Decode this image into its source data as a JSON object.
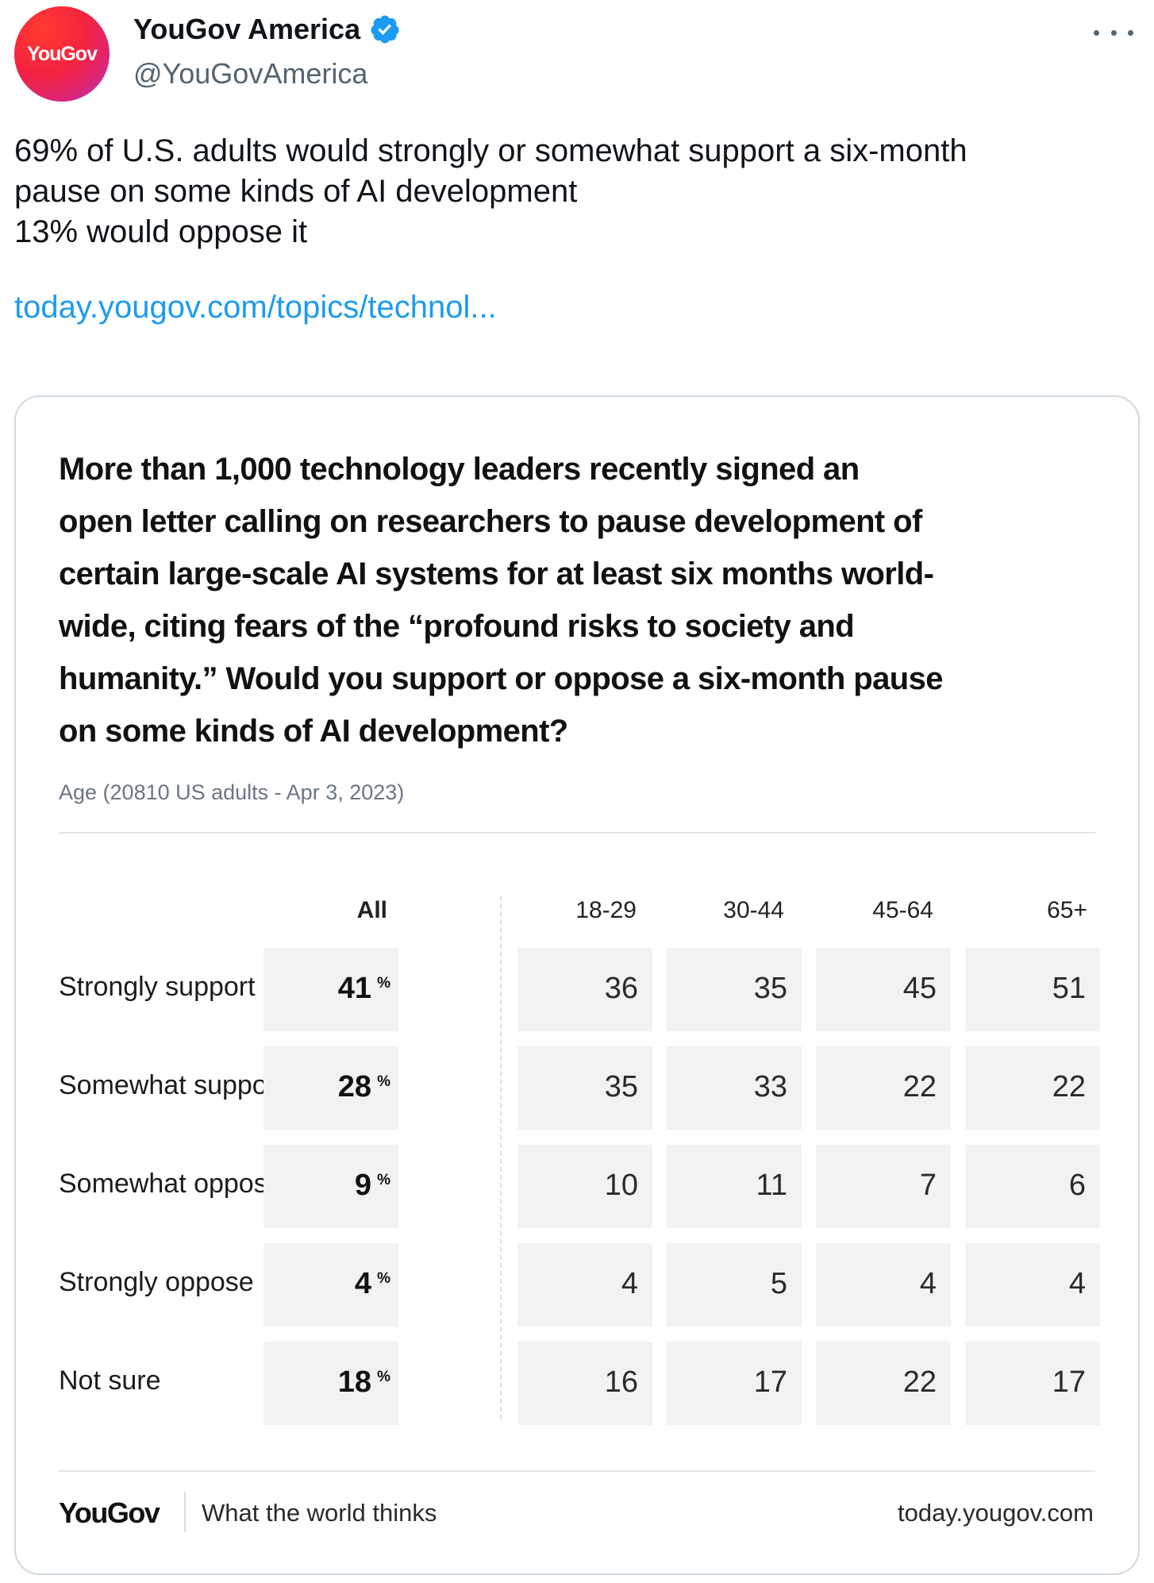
{
  "tweet": {
    "avatar_text": "YouGov",
    "display_name": "YouGov America",
    "handle": "@YouGovAmerica",
    "text_lines": [
      "69% of U.S. adults would strongly or somewhat support a six-month",
      "pause on some kinds of AI development",
      "13% would oppose it"
    ],
    "link": "today.yougov.com/topics/technol..."
  },
  "card": {
    "question_lines": [
      "More than 1,000 technology leaders recently signed an",
      "open letter calling on researchers to pause development of",
      "certain large-scale AI systems for at least six months world-",
      "wide, citing fears of the “profound risks to society and",
      "humanity.” Would you support or oppose a six-month pause",
      "on some kinds of AI development?"
    ],
    "subtitle": "Age (20810 US adults - Apr 3, 2023)",
    "columns": [
      "All",
      "18-29",
      "30-44",
      "45-64",
      "65+"
    ],
    "pct_symbol": "%",
    "rows": [
      {
        "label": "Strongly support",
        "all": "41",
        "values": [
          "36",
          "35",
          "45",
          "51"
        ]
      },
      {
        "label": "Somewhat support",
        "all": "28",
        "values": [
          "35",
          "33",
          "22",
          "22"
        ]
      },
      {
        "label": "Somewhat oppose",
        "all": "9",
        "values": [
          "10",
          "11",
          "7",
          "6"
        ]
      },
      {
        "label": "Strongly oppose",
        "all": "4",
        "values": [
          "4",
          "5",
          "4",
          "4"
        ]
      },
      {
        "label": "Not sure",
        "all": "18",
        "values": [
          "16",
          "17",
          "22",
          "17"
        ]
      }
    ],
    "footer": {
      "logo": "YouGov",
      "tagline": "What the world thinks",
      "site": "today.yougov.com"
    }
  },
  "colors": {
    "link": "#1d9bf0",
    "verified": "#1d9bf0",
    "cell_bg": "#f1f2f4",
    "border": "#cfd9de"
  }
}
